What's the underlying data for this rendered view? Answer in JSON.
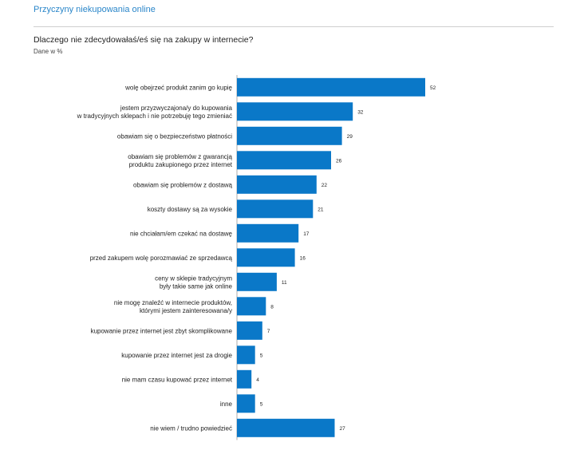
{
  "page": {
    "section_title": "Przyczyny niekupowania online",
    "question": "Dlaczego nie zdecydowałaś/eś się na zakupy w internecie?",
    "unit_note": "Dane w %"
  },
  "chart_data": {
    "type": "bar",
    "orientation": "horizontal",
    "title": "Dlaczego nie zdecydowałaś/eś się na zakupy w internecie?",
    "unit": "%",
    "bar_color": "#0a78c8",
    "categories": [
      [
        "wolę obejrzeć produkt zanim go kupię"
      ],
      [
        "jestem przyzwyczajona/y do kupowania",
        "w tradycyjnych sklepach i nie potrzebuję tego zmieniać"
      ],
      [
        "obawiam się o bezpieczeństwo płatności"
      ],
      [
        "obawiam się problemów z gwarancją",
        "produktu zakupionego przez internet"
      ],
      [
        "obawiam się problemów z dostawą"
      ],
      [
        "koszty dostawy są za wysokie"
      ],
      [
        "nie chciałam/em czekać na dostawę"
      ],
      [
        "przed zakupem wolę porozmawiać ze sprzedawcą"
      ],
      [
        "ceny w sklepie tradycyjnym",
        "były takie same jak online"
      ],
      [
        "nie mogę znaleźć w internecie produktów,",
        "którymi jestem zainteresowana/y"
      ],
      [
        "kupowanie przez internet jest zbyt skomplikowane"
      ],
      [
        "kupowanie przez internet jest za drogie"
      ],
      [
        "nie mam czasu kupować przez internet"
      ],
      [
        "inne"
      ],
      [
        "nie wiem / trudno powiedzieć"
      ]
    ],
    "values": [
      52,
      32,
      29,
      26,
      22,
      21,
      17,
      16,
      11,
      8,
      7,
      5,
      4,
      5,
      27
    ],
    "xlim": [
      0,
      52
    ]
  }
}
